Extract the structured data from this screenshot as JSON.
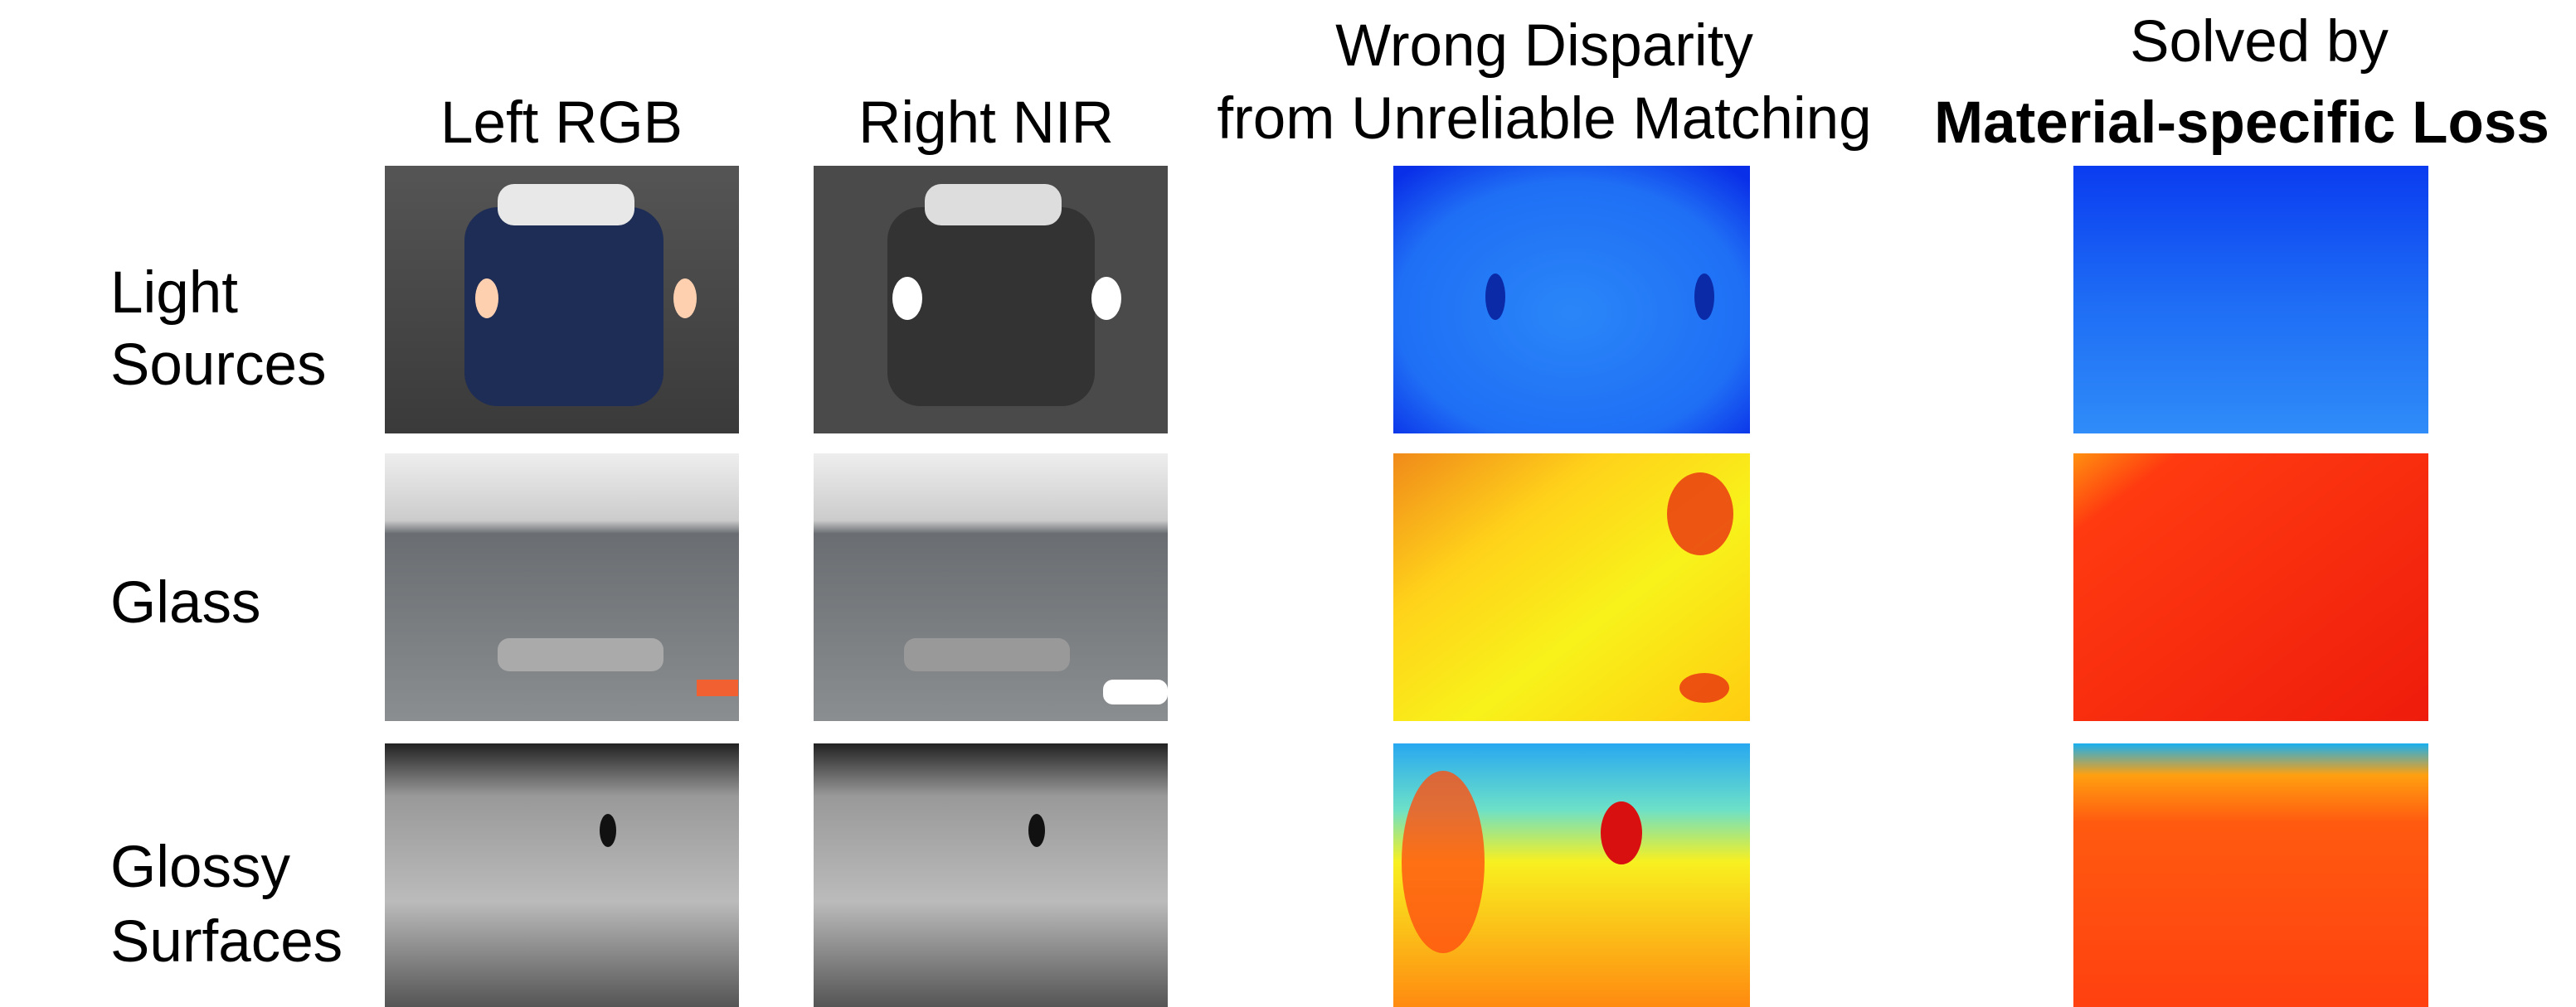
{
  "headers": [
    {
      "lines": [
        "Left RGB"
      ]
    },
    {
      "lines": [
        "Right NIR"
      ]
    },
    {
      "lines": [
        "Wrong Disparity",
        "from Unreliable Matching"
      ]
    },
    {
      "lines": [
        "Solved by",
        "Material-specific Loss"
      ]
    }
  ],
  "rows": [
    {
      "label": [
        "Light",
        "Sources"
      ]
    },
    {
      "label": [
        "Glass"
      ]
    },
    {
      "label": [
        "Glossy",
        "Surfaces"
      ]
    }
  ]
}
